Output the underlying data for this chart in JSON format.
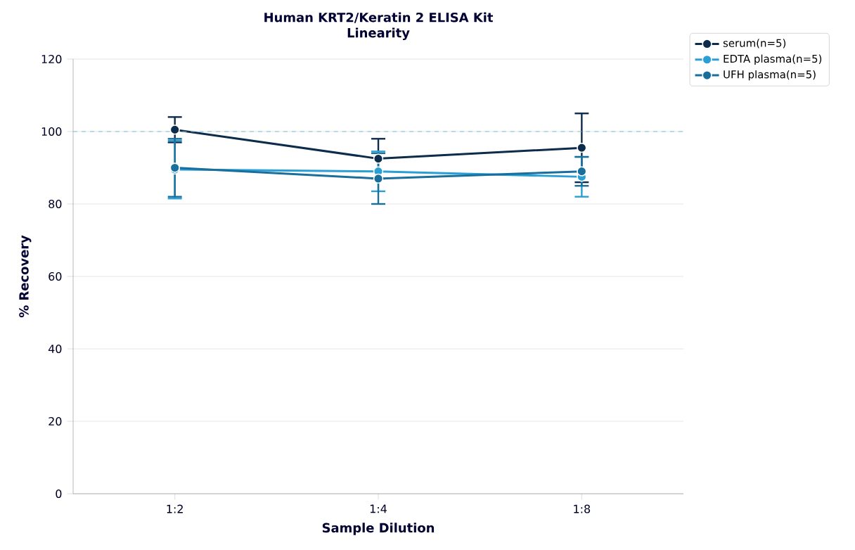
{
  "chart_data": {
    "type": "line",
    "title": "Human KRT2/Keratin 2 ELISA Kit\nLinearity",
    "xlabel": "Sample Dilution",
    "ylabel": "% Recovery",
    "categories": [
      "1:2",
      "1:4",
      "1:8"
    ],
    "series": [
      {
        "name": "serum(n=5)",
        "color": "#0d2b4a",
        "values": [
          100.5,
          92.5,
          95.5
        ],
        "errors": [
          3.5,
          5.5,
          9.5
        ]
      },
      {
        "name": "EDTA plasma(n=5)",
        "color": "#2a9fd6",
        "values": [
          89.5,
          89,
          87.5
        ],
        "errors": [
          8,
          5.5,
          5.5
        ]
      },
      {
        "name": "UFH plasma(n=5)",
        "color": "#1a6e9b",
        "values": [
          90,
          87,
          89
        ],
        "errors": [
          8,
          7,
          4
        ]
      }
    ],
    "ylim": [
      0,
      120
    ],
    "yticks": [
      0,
      20,
      40,
      60,
      80,
      100,
      120
    ],
    "ref_lines": [
      {
        "axis": "y",
        "value": 100,
        "color": "#7fbfdc",
        "line_style": "dashed"
      }
    ],
    "grid": "y",
    "legend": "top right",
    "marker": "circle",
    "line_style": "solid"
  }
}
